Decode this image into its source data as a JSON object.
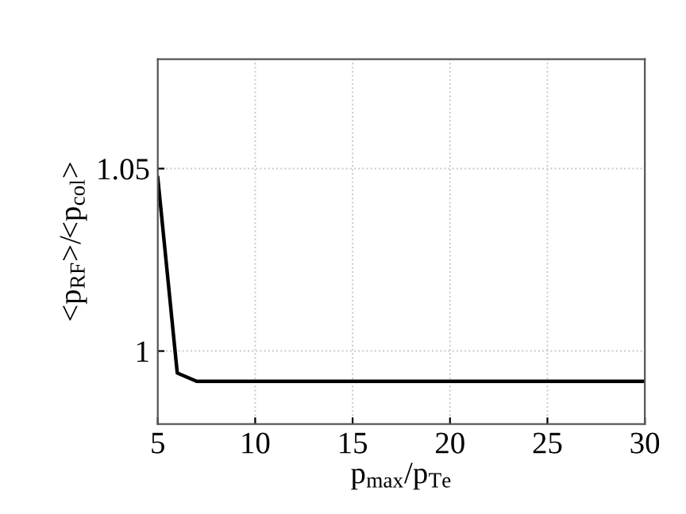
{
  "chart_data": {
    "type": "line",
    "xlabel": "p$_{max}$/p$_{Te}$",
    "ylabel": "<p$_{RF}$>/<p$_{col}$>",
    "x": [
      5,
      6,
      7,
      10,
      15,
      20,
      25,
      30
    ],
    "series": [
      {
        "color": "#000000",
        "values": [
          1.0475,
          0.994,
          0.9917,
          0.9917,
          0.9917,
          0.9917,
          0.9917,
          0.9917
        ]
      }
    ],
    "xlim": [
      5,
      30
    ],
    "ylim": [
      0.98,
      1.08
    ],
    "xticks": [
      5,
      10,
      15,
      20,
      25,
      30
    ],
    "yticks": [
      1,
      1.05
    ],
    "grid": true,
    "legend": false,
    "marker": "none",
    "line_style": "solid"
  }
}
